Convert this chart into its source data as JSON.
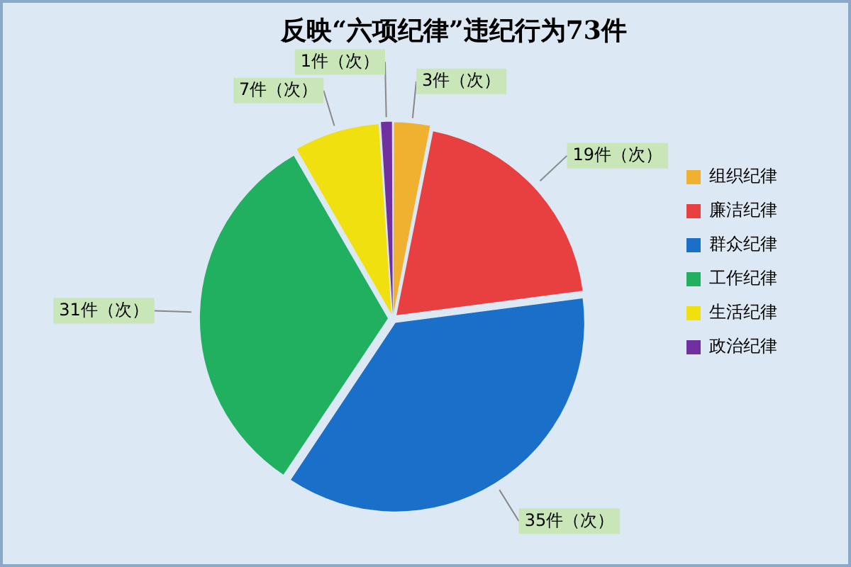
{
  "chart_data": {
    "type": "pie",
    "title": "反映“六项纪律”违纪行为73件",
    "categories": [
      "组织纪律",
      "廉洁纪律",
      "群众纪律",
      "工作纪律",
      "生活纪律",
      "政治纪律"
    ],
    "values": [
      3,
      19,
      35,
      31,
      7,
      1
    ],
    "colors": [
      "#f0b030",
      "#e84040",
      "#1a6fc8",
      "#20b060",
      "#f0e010",
      "#7030a0"
    ],
    "value_labels": [
      "3件（次）",
      "19件（次）",
      "35件（次）",
      "31件（次）",
      "7件（次）",
      "1件（次）"
    ],
    "legend": "right"
  }
}
